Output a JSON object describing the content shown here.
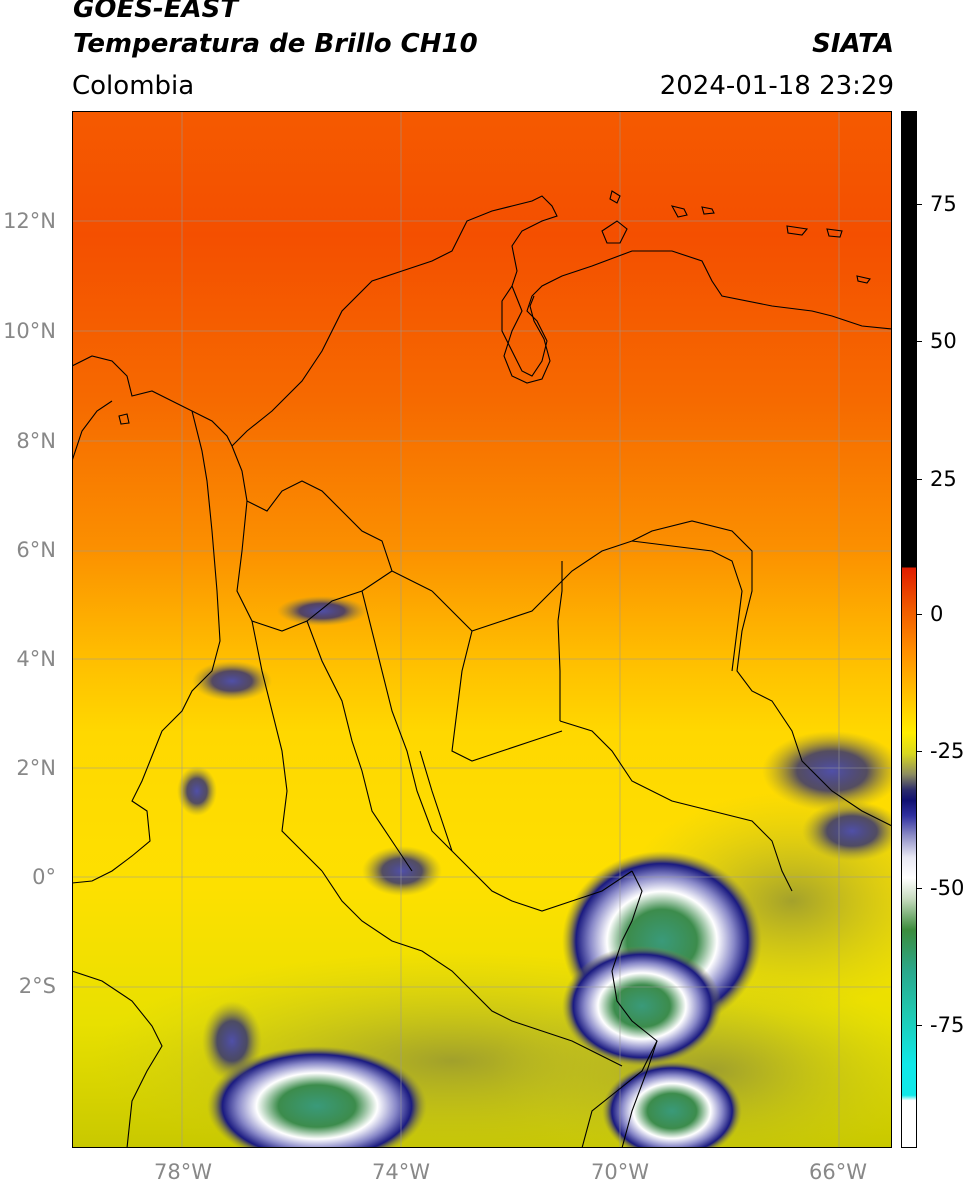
{
  "header": {
    "title_line1": "GOES-EAST",
    "title_line2": "Temperatura de Brillo CH10",
    "region": "Colombia",
    "brand": "SIATA",
    "datetime": "2024-01-18 23:29"
  },
  "map": {
    "lat_ticks": [
      "12°N",
      "10°N",
      "8°N",
      "6°N",
      "4°N",
      "2°N",
      "0°",
      "2°S"
    ],
    "lon_ticks": [
      "78°W",
      "74°W",
      "70°W",
      "66°W"
    ],
    "extent": {
      "lon_min": -80,
      "lon_max": -65,
      "lat_min": -4.8,
      "lat_max": 14
    }
  },
  "colorbar": {
    "ticks": [
      "75",
      "50",
      "25",
      "0",
      "-25",
      "-50",
      "-75"
    ],
    "range": [
      -95,
      90
    ]
  }
}
